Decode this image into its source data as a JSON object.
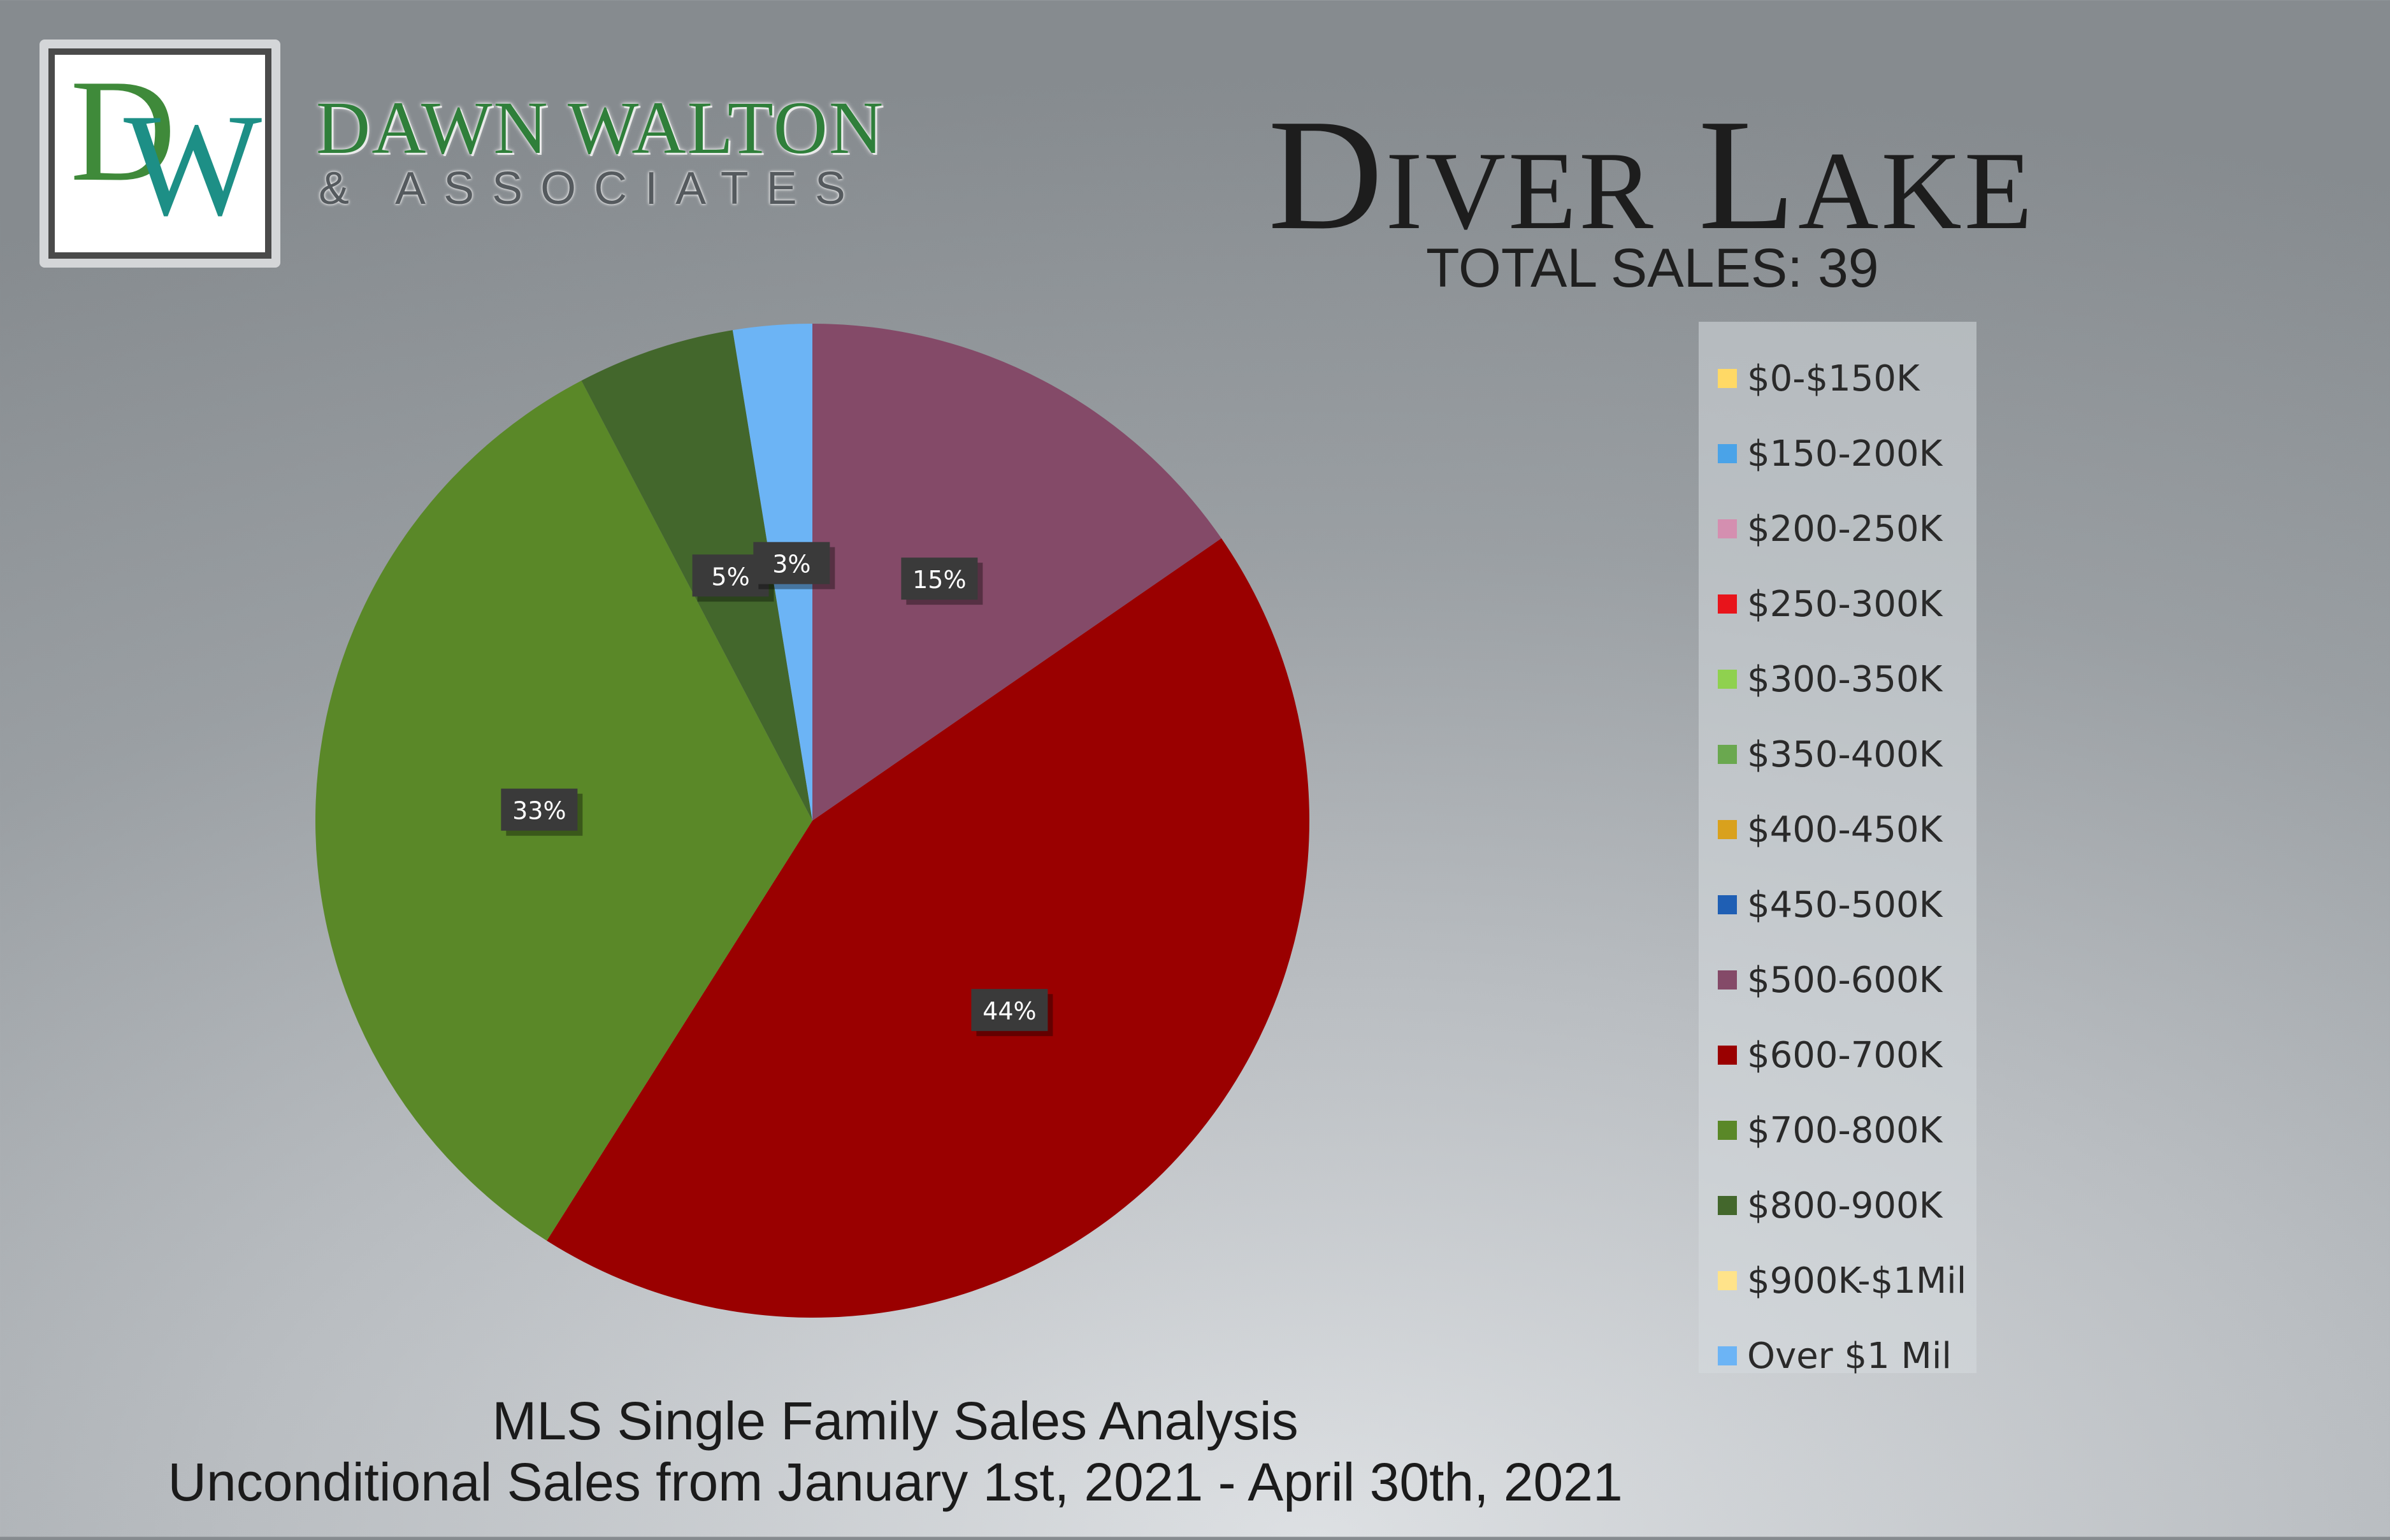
{
  "brand": {
    "logo_letters": "DW",
    "logo_d": "D",
    "logo_w": "W",
    "name": "DAWN WALTON",
    "subtitle": "& ASSOCIATES"
  },
  "header": {
    "title": "Diver Lake",
    "total_sales": "TOTAL SALES: 39"
  },
  "footer": {
    "line1": "MLS Single Family Sales Analysis",
    "line2": "Unconditional Sales from January 1st, 2021 - April 30th, 2021"
  },
  "chart_data": {
    "type": "pie",
    "total": 39,
    "categories": [
      "$0-$150K",
      "$150-200K",
      "$200-250K",
      "$250-300K",
      "$300-350K",
      "$350-400K",
      "$400-450K",
      "$450-500K",
      "$500-600K",
      "$600-700K",
      "$700-800K",
      "$800-900K",
      "$900K-$1Mil",
      "Over $1 Mil"
    ],
    "values": [
      0,
      0,
      0,
      0,
      0,
      0,
      0,
      0,
      6,
      17,
      13,
      2,
      0,
      1
    ],
    "percent_labels": [
      "0%",
      "0%",
      "0%",
      "0%",
      "0%",
      "0%",
      "0%",
      "0%",
      "15%",
      "44%",
      "33%",
      "5%",
      "0%",
      "3%"
    ],
    "colors": [
      "#ffd966",
      "#4aa3e8",
      "#d48fb0",
      "#e8141b",
      "#8fd14f",
      "#6aa84f",
      "#d9a11d",
      "#1f5fb4",
      "#844a68",
      "#9a0000",
      "#5a8828",
      "#43672c",
      "#ffe38a",
      "#6cb4f5"
    ],
    "legend_position": "right"
  }
}
